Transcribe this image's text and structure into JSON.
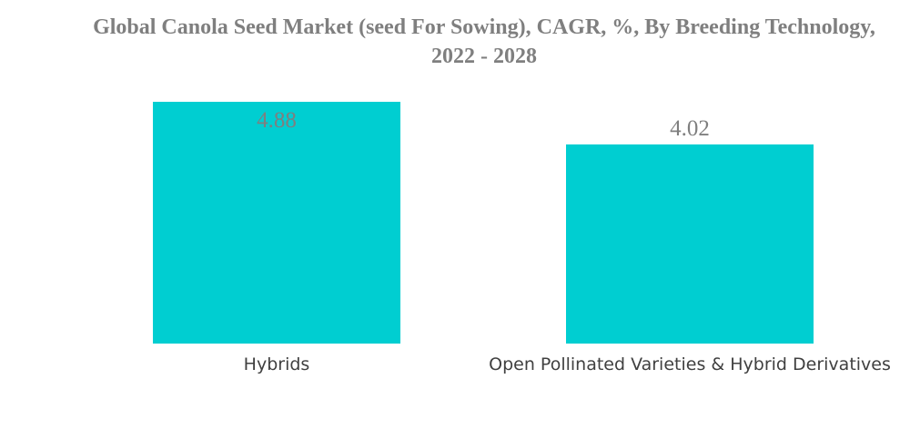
{
  "chart_data": {
    "type": "bar",
    "title": "Global Canola Seed Market (seed For Sowing), CAGR, %, By Breeding Technology, 2022 - 2028",
    "categories": [
      "Hybrids",
      "Open Pollinated Varieties & Hybrid Derivatives"
    ],
    "values": [
      4.88,
      4.02
    ],
    "value_labels": [
      "4.88",
      "4.02"
    ],
    "xlabel": "",
    "ylabel": "",
    "ylim": [
      0,
      4.88
    ],
    "grid": false,
    "legend": "none",
    "bar_color": "#00CED1",
    "label_color": "#7F7F7F"
  }
}
